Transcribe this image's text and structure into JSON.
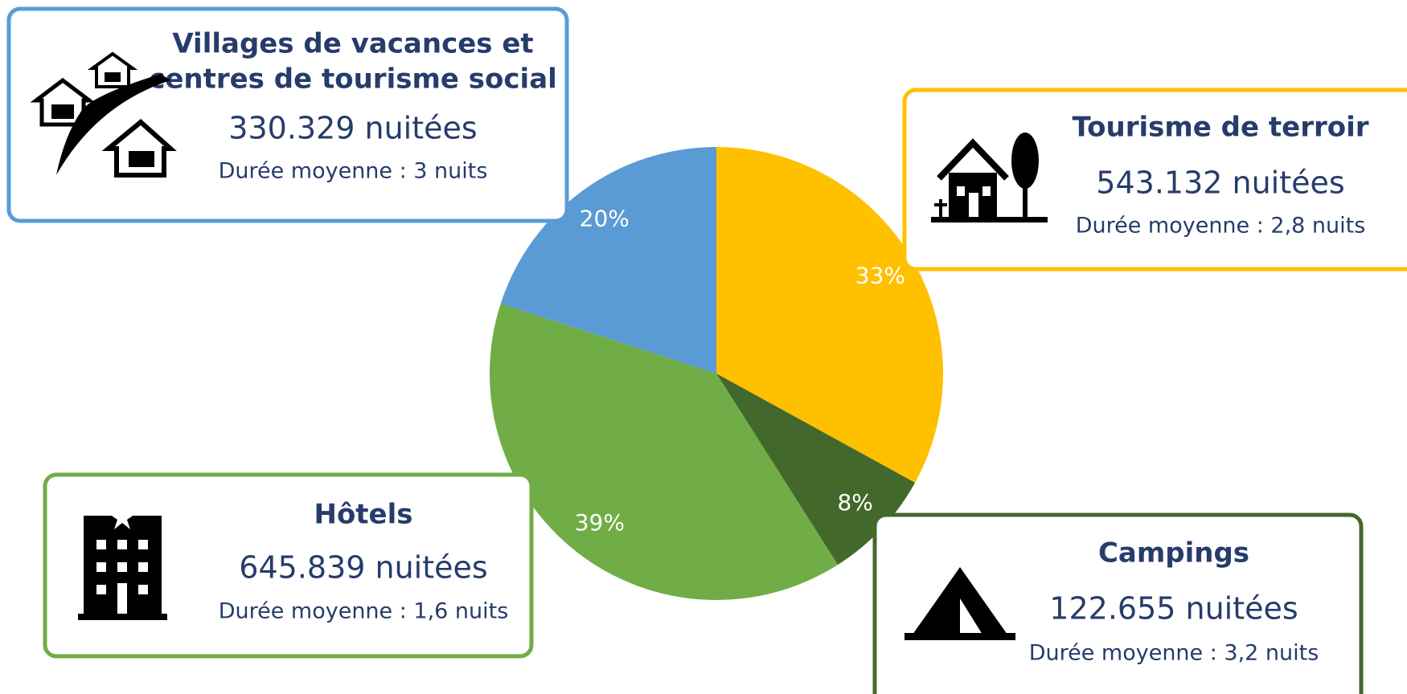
{
  "chart_data": {
    "type": "pie",
    "values": [
      33,
      8,
      39,
      20
    ],
    "value_labels": [
      "33%",
      "8%",
      "39%",
      "20%"
    ],
    "colors": [
      "#ffc000",
      "#43682b",
      "#70ad47",
      "#5b9bd5"
    ],
    "cards": [
      {
        "title": [
          "Tourisme de terroir"
        ],
        "nights": "543.132 nuitées",
        "duration": "Durée moyenne : 2,8 nuits"
      },
      {
        "title": [
          "Campings"
        ],
        "nights": "122.655 nuitées",
        "duration": "Durée moyenne : 3,2 nuits"
      },
      {
        "title": [
          "Hôtels"
        ],
        "nights": "645.839 nuitées",
        "duration": "Durée moyenne : 1,6 nuits"
      },
      {
        "title": [
          "Villages de vacances et",
          "centres de tourisme social"
        ],
        "nights": "330.329 nuitées",
        "duration": "Durée moyenne : 3 nuits"
      }
    ]
  }
}
